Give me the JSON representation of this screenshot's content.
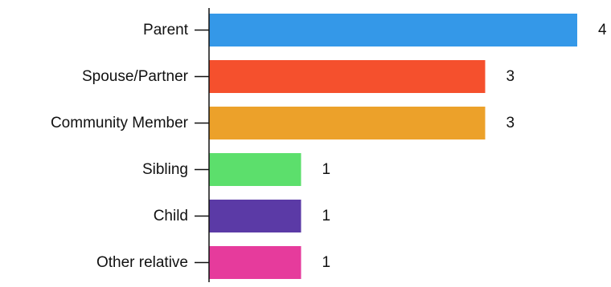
{
  "chart_data": {
    "type": "bar",
    "orientation": "horizontal",
    "categories": [
      "Parent",
      "Spouse/Partner",
      "Community Member",
      "Sibling",
      "Child",
      "Other relative"
    ],
    "values": [
      4,
      3,
      3,
      1,
      1,
      1
    ],
    "colors": [
      "#3498e8",
      "#f5502d",
      "#eca12a",
      "#5cdf6c",
      "#5b3aa6",
      "#e63b9c"
    ],
    "data_labels": [
      "4",
      "3",
      "3",
      "1",
      "1",
      "1"
    ],
    "title": "",
    "xlabel": "",
    "ylabel": "",
    "xlim": [
      0,
      4
    ],
    "grid": false,
    "legend": "none"
  }
}
